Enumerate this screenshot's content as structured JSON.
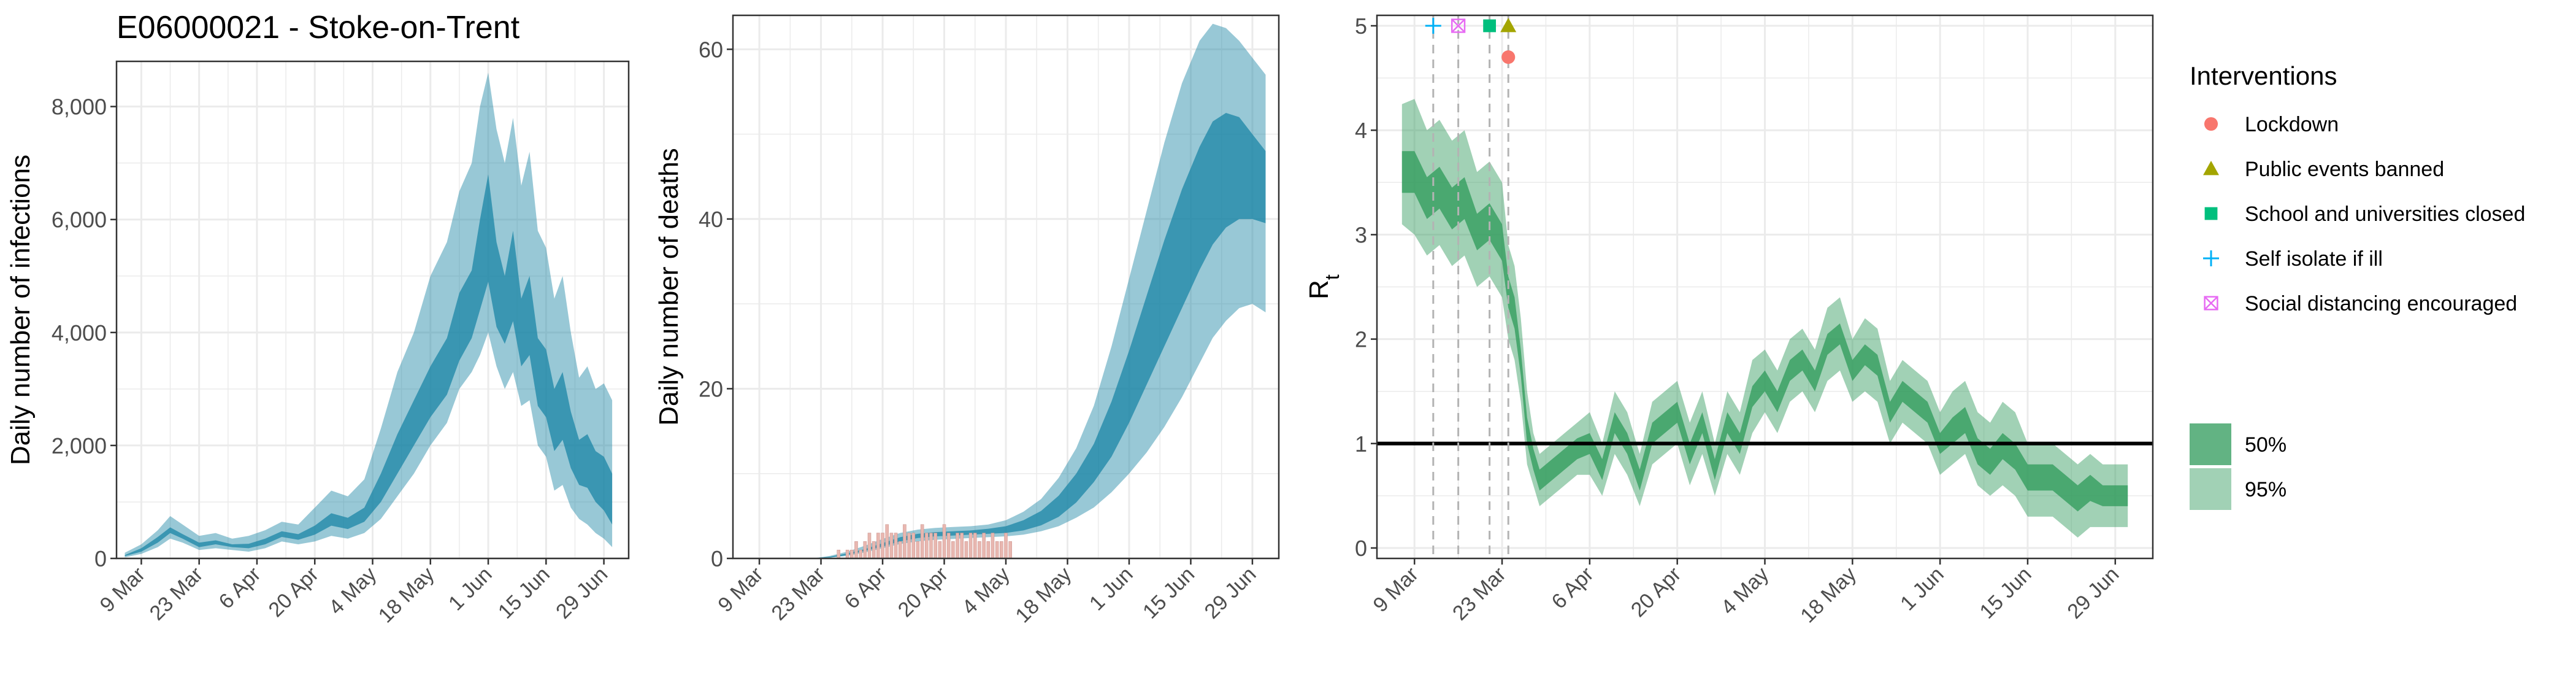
{
  "title": "E06000021 - Stoke-on-Trent",
  "colors": {
    "infections_band": "#1b85a5",
    "deaths_band": "#1b85a5",
    "rt_band": "#2e9a5a",
    "observed_deaths_bars": "#e8b7b0",
    "reference_line": "#000000",
    "grid": "#ebebeb",
    "panel_border": "#333333",
    "lockdown": "#f8766d",
    "public_events": "#a3a500",
    "school": "#00bf7d",
    "self_isolate": "#00b0f6",
    "social_distancing": "#e76bf3"
  },
  "chart_data": [
    {
      "type": "area",
      "panel": "infections",
      "ylabel": "Daily number of infections",
      "xlabel": "",
      "ylim": [
        0,
        8800
      ],
      "y_ticks": [
        0,
        2000,
        4000,
        6000,
        8000
      ],
      "y_tick_labels": [
        "0",
        "2,000",
        "4,000",
        "6,000",
        "8,000"
      ],
      "x_tick_labels": [
        "9 Mar",
        "23 Mar",
        "6 Apr",
        "20 Apr",
        "4 May",
        "18 May",
        "1 Jun",
        "15 Jun",
        "29 Jun"
      ],
      "x_tick_days": [
        0,
        14,
        28,
        42,
        56,
        70,
        84,
        98,
        112
      ],
      "xlim": [
        -6,
        118
      ],
      "series": [
        {
          "name": "95%",
          "x": [
            -4,
            0,
            4,
            7,
            10,
            14,
            18,
            22,
            26,
            30,
            34,
            38,
            42,
            46,
            50,
            54,
            58,
            62,
            66,
            70,
            74,
            77,
            80,
            82,
            84,
            86,
            88,
            90,
            92,
            94,
            96,
            98,
            100,
            102,
            104,
            106,
            108,
            110,
            112,
            114
          ],
          "upper": [
            100,
            250,
            500,
            750,
            600,
            400,
            450,
            350,
            400,
            500,
            650,
            600,
            900,
            1200,
            1100,
            1400,
            2300,
            3300,
            4000,
            5000,
            5600,
            6500,
            7000,
            8000,
            8600,
            7600,
            7000,
            7800,
            6600,
            7200,
            5800,
            5500,
            4600,
            5000,
            4000,
            3200,
            3400,
            3000,
            3100,
            2800
          ],
          "lower": [
            20,
            80,
            200,
            350,
            280,
            150,
            180,
            150,
            120,
            180,
            300,
            250,
            300,
            400,
            350,
            450,
            700,
            1100,
            1500,
            2000,
            2400,
            3000,
            3300,
            3600,
            4000,
            3400,
            3000,
            3300,
            2700,
            2800,
            2000,
            1800,
            1200,
            1300,
            900,
            700,
            600,
            450,
            350,
            200
          ]
        },
        {
          "name": "50%",
          "x": [
            -4,
            0,
            4,
            7,
            10,
            14,
            18,
            22,
            26,
            30,
            34,
            38,
            42,
            46,
            50,
            54,
            58,
            62,
            66,
            70,
            74,
            77,
            80,
            82,
            84,
            86,
            88,
            90,
            92,
            94,
            96,
            98,
            100,
            102,
            104,
            106,
            108,
            110,
            112,
            114
          ],
          "upper": [
            60,
            180,
            380,
            550,
            430,
            280,
            320,
            250,
            260,
            350,
            480,
            430,
            580,
            800,
            720,
            900,
            1500,
            2200,
            2800,
            3400,
            3900,
            4700,
            5100,
            6000,
            6800,
            5600,
            5000,
            5800,
            4600,
            5000,
            3900,
            3700,
            3000,
            3300,
            2600,
            2100,
            2200,
            1900,
            1800,
            1500
          ],
          "lower": [
            40,
            120,
            280,
            450,
            350,
            200,
            250,
            200,
            180,
            250,
            380,
            330,
            420,
            580,
            520,
            650,
            1000,
            1500,
            2000,
            2500,
            2900,
            3500,
            3900,
            4400,
            4900,
            4100,
            3800,
            4200,
            3400,
            3600,
            2700,
            2500,
            1900,
            2100,
            1600,
            1300,
            1250,
            1000,
            850,
            600
          ]
        }
      ]
    },
    {
      "type": "area",
      "panel": "deaths",
      "ylabel": "Daily number of deaths",
      "xlabel": "",
      "ylim": [
        0,
        64
      ],
      "y_ticks": [
        0,
        20,
        40,
        60
      ],
      "y_tick_labels": [
        "0",
        "20",
        "40",
        "60"
      ],
      "x_tick_labels": [
        "9 Mar",
        "23 Mar",
        "6 Apr",
        "20 Apr",
        "4 May",
        "18 May",
        "1 Jun",
        "15 Jun",
        "29 Jun"
      ],
      "x_tick_days": [
        0,
        14,
        28,
        42,
        56,
        70,
        84,
        98,
        112
      ],
      "xlim": [
        -6,
        118
      ],
      "series": [
        {
          "name": "95%",
          "x": [
            12,
            16,
            20,
            24,
            28,
            32,
            36,
            40,
            44,
            48,
            52,
            56,
            60,
            64,
            68,
            72,
            76,
            80,
            84,
            88,
            92,
            96,
            100,
            103,
            106,
            109,
            112,
            115
          ],
          "upper": [
            0,
            0.3,
            0.8,
            1.5,
            2.3,
            3.0,
            3.4,
            3.6,
            3.7,
            3.8,
            4.0,
            4.5,
            5.5,
            7,
            9.5,
            13,
            18,
            25,
            33,
            41,
            49,
            56,
            61,
            63,
            62.5,
            61,
            59,
            57
          ],
          "lower": [
            0,
            0.1,
            0.3,
            0.7,
            1.2,
            1.7,
            2.0,
            2.2,
            2.3,
            2.4,
            2.5,
            2.6,
            2.8,
            3.2,
            3.8,
            4.8,
            6,
            7.8,
            10,
            12.5,
            15.5,
            19,
            23,
            26,
            28,
            29.5,
            30,
            29
          ]
        },
        {
          "name": "50%",
          "x": [
            12,
            16,
            20,
            24,
            28,
            32,
            36,
            40,
            44,
            48,
            52,
            56,
            60,
            64,
            68,
            72,
            76,
            80,
            84,
            88,
            92,
            96,
            100,
            103,
            106,
            109,
            112,
            115
          ],
          "upper": [
            0,
            0.2,
            0.6,
            1.1,
            1.8,
            2.5,
            2.9,
            3.1,
            3.2,
            3.3,
            3.5,
            3.8,
            4.5,
            5.6,
            7.4,
            10,
            13.5,
            18.5,
            24.5,
            31,
            37.5,
            43.5,
            48.5,
            51.5,
            52.5,
            52,
            50,
            48
          ],
          "lower": [
            0,
            0.1,
            0.4,
            0.9,
            1.4,
            2.0,
            2.4,
            2.6,
            2.7,
            2.8,
            2.9,
            3.0,
            3.3,
            3.9,
            4.9,
            6.6,
            9,
            12,
            16,
            20.5,
            25,
            29.5,
            34,
            37,
            39,
            40,
            40,
            39.5
          ]
        }
      ],
      "observed_deaths": {
        "x": [
          17,
          18,
          19,
          20,
          21,
          22,
          23,
          24,
          25,
          26,
          27,
          28,
          29,
          30,
          31,
          32,
          33,
          34,
          35,
          36,
          37,
          38,
          39,
          40,
          41,
          42,
          43,
          44,
          45,
          46,
          47,
          48,
          49,
          50,
          51,
          52,
          53,
          54,
          55,
          56,
          57
        ],
        "values": [
          0,
          1,
          0,
          1,
          1,
          2,
          1,
          2,
          3,
          2,
          3,
          3,
          4,
          3,
          3,
          2,
          4,
          3,
          3,
          2,
          4,
          3,
          3,
          3,
          2,
          4,
          3,
          2,
          3,
          3,
          2,
          3,
          3,
          2,
          3,
          2,
          3,
          2,
          2,
          3,
          2
        ]
      }
    },
    {
      "type": "area",
      "panel": "rt",
      "ylabel": "R",
      "ylabel_subscript": "t",
      "xlabel": "",
      "ylim": [
        -0.1,
        5.1
      ],
      "y_ticks": [
        0,
        1,
        2,
        3,
        4,
        5
      ],
      "y_tick_labels": [
        "0",
        "1",
        "2",
        "3",
        "4",
        "5"
      ],
      "x_tick_labels": [
        "9 Mar",
        "23 Mar",
        "6 Apr",
        "20 Apr",
        "4 May",
        "18 May",
        "1 Jun",
        "15 Jun",
        "29 Jun"
      ],
      "x_tick_days": [
        0,
        14,
        28,
        42,
        56,
        70,
        84,
        98,
        112
      ],
      "xlim": [
        -6,
        118
      ],
      "reference_line_y": 1,
      "series": [
        {
          "name": "95%",
          "x": [
            -2,
            0,
            2,
            4,
            6,
            8,
            10,
            12,
            14,
            15,
            16,
            17,
            18,
            19,
            20,
            22,
            24,
            26,
            28,
            30,
            32,
            34,
            36,
            38,
            40,
            42,
            44,
            46,
            48,
            50,
            52,
            54,
            56,
            58,
            60,
            62,
            64,
            66,
            68,
            70,
            72,
            74,
            76,
            78,
            80,
            82,
            84,
            86,
            88,
            90,
            92,
            94,
            96,
            98,
            100,
            102,
            104,
            106,
            108,
            110,
            112,
            114
          ],
          "upper": [
            4.25,
            4.3,
            4.0,
            4.1,
            3.9,
            4.0,
            3.6,
            3.7,
            3.5,
            2.9,
            2.7,
            2.2,
            1.5,
            1.1,
            0.9,
            1.0,
            1.1,
            1.2,
            1.3,
            1.0,
            1.5,
            1.3,
            0.9,
            1.4,
            1.5,
            1.6,
            1.2,
            1.5,
            1.0,
            1.5,
            1.3,
            1.8,
            1.9,
            1.7,
            2.0,
            2.1,
            1.9,
            2.3,
            2.4,
            2.0,
            2.2,
            2.1,
            1.6,
            1.8,
            1.7,
            1.6,
            1.3,
            1.5,
            1.6,
            1.3,
            1.2,
            1.4,
            1.3,
            1.0,
            1.0,
            1.0,
            0.9,
            0.8,
            0.9,
            0.8,
            0.8,
            0.8
          ],
          "lower": [
            3.1,
            3.0,
            2.8,
            2.9,
            2.7,
            2.8,
            2.5,
            2.6,
            2.4,
            2.0,
            1.8,
            1.4,
            0.8,
            0.6,
            0.4,
            0.5,
            0.6,
            0.7,
            0.7,
            0.5,
            0.9,
            0.7,
            0.4,
            0.8,
            0.9,
            1.0,
            0.6,
            0.9,
            0.5,
            0.9,
            0.7,
            1.1,
            1.3,
            1.1,
            1.4,
            1.5,
            1.3,
            1.6,
            1.7,
            1.4,
            1.5,
            1.4,
            1.0,
            1.2,
            1.1,
            1.0,
            0.7,
            0.8,
            0.9,
            0.6,
            0.5,
            0.6,
            0.5,
            0.3,
            0.3,
            0.3,
            0.2,
            0.1,
            0.2,
            0.2,
            0.2,
            0.2
          ]
        },
        {
          "name": "50%",
          "x": [
            -2,
            0,
            2,
            4,
            6,
            8,
            10,
            12,
            14,
            15,
            16,
            17,
            18,
            19,
            20,
            22,
            24,
            26,
            28,
            30,
            32,
            34,
            36,
            38,
            40,
            42,
            44,
            46,
            48,
            50,
            52,
            54,
            56,
            58,
            60,
            62,
            64,
            66,
            68,
            70,
            72,
            74,
            76,
            78,
            80,
            82,
            84,
            86,
            88,
            90,
            92,
            94,
            96,
            98,
            100,
            102,
            104,
            106,
            108,
            110,
            112,
            114
          ],
          "upper": [
            3.8,
            3.8,
            3.55,
            3.65,
            3.45,
            3.55,
            3.2,
            3.3,
            3.1,
            2.6,
            2.4,
            1.9,
            1.25,
            0.95,
            0.75,
            0.85,
            0.95,
            1.05,
            1.1,
            0.85,
            1.3,
            1.1,
            0.75,
            1.2,
            1.3,
            1.4,
            1.0,
            1.3,
            0.85,
            1.3,
            1.1,
            1.55,
            1.7,
            1.5,
            1.8,
            1.9,
            1.7,
            2.05,
            2.15,
            1.8,
            1.95,
            1.85,
            1.4,
            1.6,
            1.5,
            1.4,
            1.1,
            1.25,
            1.35,
            1.05,
            0.95,
            1.1,
            1.0,
            0.8,
            0.8,
            0.8,
            0.7,
            0.6,
            0.7,
            0.6,
            0.6,
            0.6
          ],
          "lower": [
            3.4,
            3.4,
            3.15,
            3.25,
            3.05,
            3.15,
            2.85,
            2.95,
            2.75,
            2.3,
            2.1,
            1.65,
            1.0,
            0.75,
            0.55,
            0.65,
            0.75,
            0.85,
            0.9,
            0.65,
            1.1,
            0.9,
            0.55,
            1.0,
            1.1,
            1.2,
            0.8,
            1.1,
            0.65,
            1.1,
            0.9,
            1.35,
            1.5,
            1.3,
            1.6,
            1.7,
            1.5,
            1.85,
            1.95,
            1.6,
            1.75,
            1.65,
            1.2,
            1.4,
            1.3,
            1.2,
            0.9,
            1.0,
            1.1,
            0.8,
            0.7,
            0.85,
            0.75,
            0.55,
            0.55,
            0.55,
            0.45,
            0.35,
            0.45,
            0.4,
            0.4,
            0.4
          ]
        }
      ],
      "interventions": [
        {
          "name": "Self isolate if ill",
          "day": 3,
          "marker": "plus",
          "y": 5.0,
          "color_key": "self_isolate"
        },
        {
          "name": "Social distancing encouraged",
          "day": 7,
          "marker": "boxx",
          "y": 5.0,
          "color_key": "social_distancing"
        },
        {
          "name": "School and universities closed",
          "day": 12,
          "marker": "square",
          "y": 5.0,
          "color_key": "school"
        },
        {
          "name": "Public events banned",
          "day": 15,
          "marker": "triangle",
          "y": 5.0,
          "color_key": "public_events"
        },
        {
          "name": "Lockdown",
          "day": 15,
          "marker": "circle",
          "y": 4.7,
          "color_key": "lockdown"
        }
      ]
    }
  ],
  "legend": {
    "interventions_title": "Interventions",
    "interventions": [
      {
        "label": "Lockdown",
        "marker": "circle",
        "color_key": "lockdown"
      },
      {
        "label": "Public events banned",
        "marker": "triangle",
        "color_key": "public_events"
      },
      {
        "label": "School and universities closed",
        "marker": "square",
        "color_key": "school"
      },
      {
        "label": "Self isolate if ill",
        "marker": "plus",
        "color_key": "self_isolate"
      },
      {
        "label": "Social distancing encouraged",
        "marker": "boxx",
        "color_key": "social_distancing"
      }
    ],
    "ci": [
      {
        "label": "50%",
        "alpha": 0.75
      },
      {
        "label": "95%",
        "alpha": 0.45
      }
    ]
  }
}
